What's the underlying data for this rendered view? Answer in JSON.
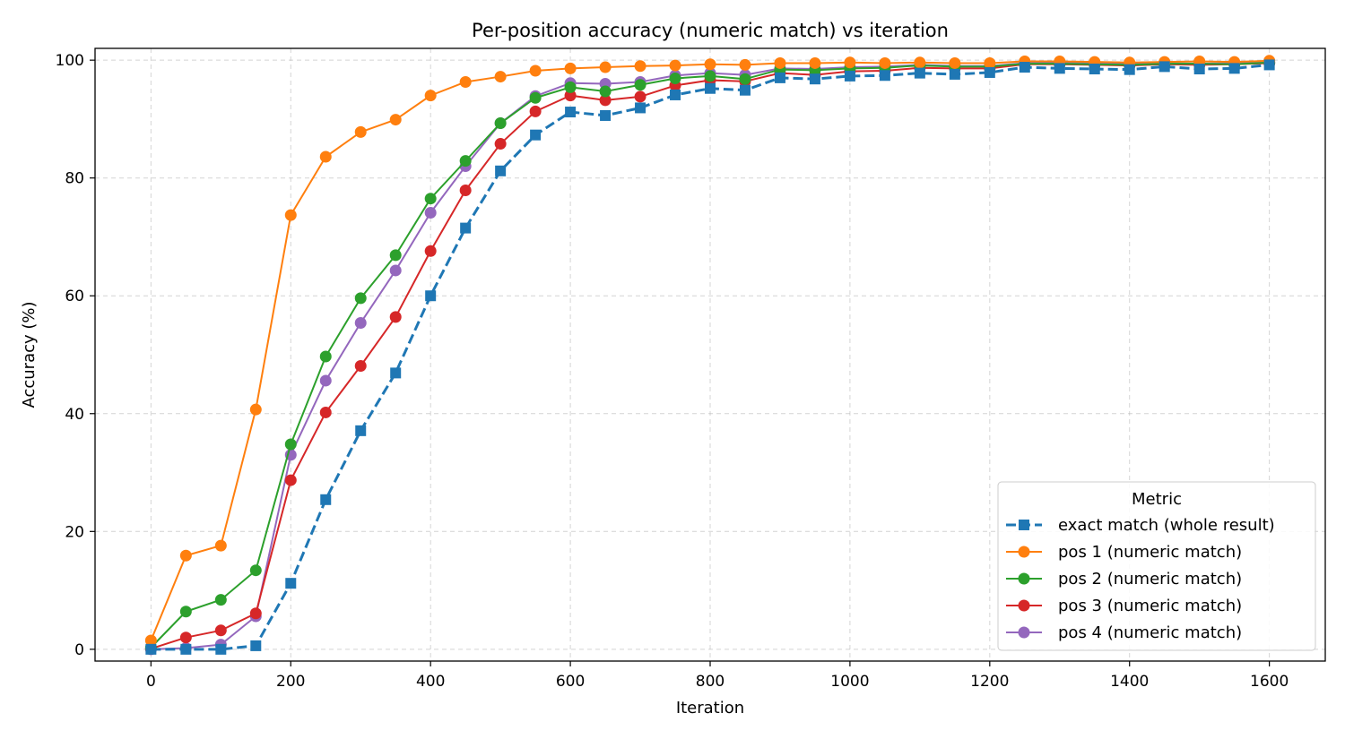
{
  "chart_data": {
    "type": "line",
    "title": "Per-position accuracy (numeric match) vs iteration",
    "xlabel": "Iteration",
    "ylabel": "Accuracy (%)",
    "xlim": [
      -80,
      1680
    ],
    "ylim": [
      -2,
      102
    ],
    "xticks": [
      0,
      200,
      400,
      600,
      800,
      1000,
      1200,
      1400,
      1600
    ],
    "yticks": [
      0,
      20,
      40,
      60,
      80,
      100
    ],
    "grid": true,
    "legend": {
      "title": "Metric",
      "placement": "lower-right"
    },
    "x": [
      0,
      50,
      100,
      150,
      200,
      250,
      300,
      350,
      400,
      450,
      500,
      550,
      600,
      650,
      700,
      750,
      800,
      850,
      900,
      950,
      1000,
      1050,
      1100,
      1150,
      1200,
      1250,
      1300,
      1350,
      1400,
      1450,
      1500,
      1550,
      1600
    ],
    "series": [
      {
        "name": "exact match (whole result)",
        "color": "#1f77b4",
        "marker": "square",
        "dashed": true,
        "values": [
          0.0,
          0.0,
          0.0,
          0.6,
          11.2,
          25.4,
          37.1,
          46.9,
          60.0,
          71.5,
          81.2,
          87.3,
          91.2,
          90.6,
          91.9,
          94.1,
          95.2,
          94.9,
          97.0,
          96.8,
          97.3,
          97.4,
          97.8,
          97.6,
          97.9,
          98.8,
          98.6,
          98.5,
          98.4,
          98.9,
          98.5,
          98.6,
          99.2
        ]
      },
      {
        "name": "pos 1 (numeric match)",
        "color": "#ff7f0e",
        "marker": "circle",
        "dashed": false,
        "values": [
          1.5,
          15.9,
          17.6,
          40.7,
          73.7,
          83.6,
          87.8,
          89.9,
          94.0,
          96.3,
          97.2,
          98.2,
          98.6,
          98.8,
          99.0,
          99.1,
          99.3,
          99.2,
          99.5,
          99.5,
          99.6,
          99.5,
          99.6,
          99.5,
          99.5,
          99.8,
          99.8,
          99.7,
          99.6,
          99.7,
          99.8,
          99.7,
          99.9
        ]
      },
      {
        "name": "pos 2 (numeric match)",
        "color": "#2ca02c",
        "marker": "circle",
        "dashed": false,
        "values": [
          0.3,
          6.4,
          8.4,
          13.4,
          34.8,
          49.7,
          59.6,
          66.9,
          76.5,
          82.9,
          89.3,
          93.6,
          95.4,
          94.7,
          95.8,
          96.9,
          97.3,
          96.8,
          98.4,
          98.3,
          98.6,
          98.7,
          99.1,
          98.9,
          98.9,
          99.4,
          99.4,
          99.3,
          99.2,
          99.4,
          99.4,
          99.3,
          99.6
        ]
      },
      {
        "name": "pos 3 (numeric match)",
        "color": "#d62728",
        "marker": "circle",
        "dashed": false,
        "values": [
          0.1,
          2.0,
          3.2,
          6.1,
          28.7,
          40.2,
          48.1,
          56.4,
          67.6,
          77.9,
          85.8,
          91.3,
          94.0,
          93.2,
          93.8,
          95.7,
          96.6,
          96.4,
          97.8,
          97.5,
          98.1,
          98.2,
          98.7,
          98.6,
          98.6,
          99.3,
          99.3,
          99.2,
          99.1,
          99.3,
          99.2,
          99.3,
          99.5
        ]
      },
      {
        "name": "pos 4 (numeric match)",
        "color": "#9467bd",
        "marker": "circle",
        "dashed": false,
        "values": [
          0.0,
          0.2,
          0.8,
          5.6,
          33.0,
          45.6,
          55.4,
          64.3,
          74.1,
          82.0,
          89.3,
          93.9,
          96.1,
          96.0,
          96.3,
          97.4,
          97.8,
          97.5,
          98.6,
          98.5,
          98.8,
          98.9,
          99.2,
          99.0,
          99.0,
          99.5,
          99.5,
          99.5,
          99.4,
          99.5,
          99.4,
          99.5,
          99.6
        ]
      }
    ]
  }
}
